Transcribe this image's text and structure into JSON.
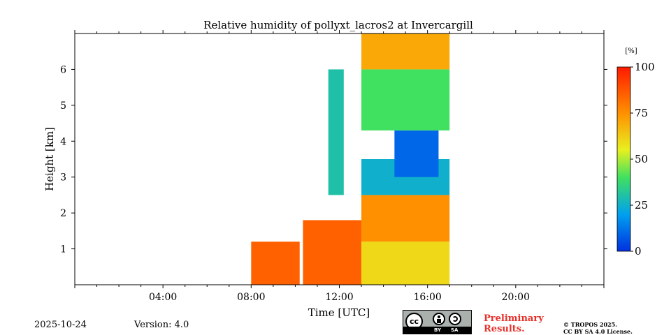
{
  "chart_data": {
    "type": "heatmap",
    "title": "Relative humidity of pollyxt_lacros2 at Invercargill",
    "xlabel": "Time [UTC]",
    "ylabel": "Height [km]",
    "x_range_hours": [
      0,
      24
    ],
    "ylim_km": [
      0,
      7
    ],
    "x_ticks": [
      "04:00",
      "08:00",
      "12:00",
      "16:00",
      "20:00"
    ],
    "x_tick_hours": [
      4,
      8,
      12,
      16,
      20
    ],
    "y_ticks": [
      "1",
      "2",
      "3",
      "4",
      "5",
      "6"
    ],
    "y_tick_values": [
      1,
      2,
      3,
      4,
      5,
      6
    ],
    "colorbar": {
      "unit": "[%]",
      "ticks": [
        "0",
        "25",
        "50",
        "75",
        "100"
      ],
      "tick_values": [
        0,
        25,
        50,
        75,
        100
      ],
      "colormap": "jet",
      "range": [
        0,
        100
      ]
    },
    "data_coverage_hours": [
      [
        8.0,
        10.2
      ],
      [
        10.35,
        17.0
      ]
    ],
    "humidity_regions": [
      {
        "from_hour": 8.0,
        "to_hour": 10.2,
        "bottom_km": 0.0,
        "top_km": 1.2,
        "rh_percent": 85
      },
      {
        "from_hour": 10.35,
        "to_hour": 13.0,
        "bottom_km": 0.0,
        "top_km": 1.8,
        "rh_percent": 85
      },
      {
        "from_hour": 11.5,
        "to_hour": 12.2,
        "bottom_km": 2.5,
        "top_km": 6.0,
        "rh_percent": 30
      },
      {
        "from_hour": 13.0,
        "to_hour": 17.0,
        "bottom_km": 0.0,
        "top_km": 1.2,
        "rh_percent": 60
      },
      {
        "from_hour": 13.0,
        "to_hour": 17.0,
        "bottom_km": 1.2,
        "top_km": 2.5,
        "rh_percent": 75
      },
      {
        "from_hour": 13.0,
        "to_hour": 17.0,
        "bottom_km": 2.5,
        "top_km": 3.5,
        "rh_percent": 25
      },
      {
        "from_hour": 14.5,
        "to_hour": 16.5,
        "bottom_km": 3.0,
        "top_km": 4.3,
        "rh_percent": 10
      },
      {
        "from_hour": 13.0,
        "to_hour": 17.0,
        "bottom_km": 4.3,
        "top_km": 6.0,
        "rh_percent": 40
      },
      {
        "from_hour": 13.0,
        "to_hour": 17.0,
        "bottom_km": 6.0,
        "top_km": 7.0,
        "rh_percent": 70
      }
    ]
  },
  "footer": {
    "date": "2025-10-24",
    "version": "Version: 4.0",
    "preliminary": "Preliminary Results.",
    "copyright_1": "© TROPOS 2025.",
    "copyright_2": "CC BY SA 4.0 License.",
    "license_badge": {
      "cc": "cc",
      "by": "BY",
      "sa": "SA"
    }
  }
}
